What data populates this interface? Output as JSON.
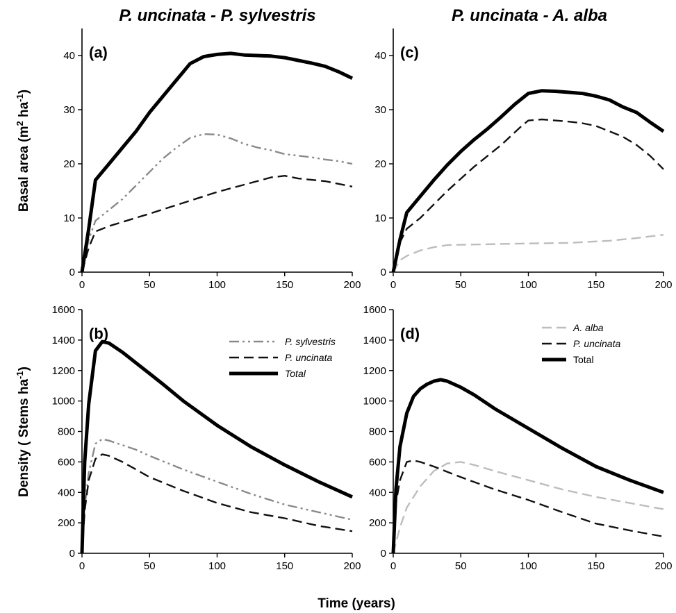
{
  "figure": {
    "col_titles": [
      "P. uncinata - P. sylvestris",
      "P. uncinata - A. alba"
    ],
    "ylabel_top": "Basal area (m² ha⁻¹)",
    "ylabel_bottom": "Density ( Stems ha⁻¹)",
    "xlabel": "Time (years)"
  },
  "chart_data": [
    {
      "panel": "(a)",
      "type": "line",
      "xlim": [
        0,
        200
      ],
      "ylim": [
        0,
        45
      ],
      "xticks": [
        0,
        50,
        100,
        150,
        200
      ],
      "yticks": [
        0,
        10,
        20,
        30,
        40
      ],
      "legend": false,
      "series": [
        {
          "name": "P. sylvestris",
          "style": "dashdotdot",
          "color": "#8a8a8a",
          "x": [
            0,
            5,
            10,
            20,
            30,
            40,
            50,
            60,
            70,
            80,
            90,
            100,
            110,
            120,
            130,
            140,
            150,
            160,
            170,
            180,
            190,
            200
          ],
          "y": [
            0,
            6,
            9.5,
            11.5,
            13.5,
            16,
            18.5,
            21,
            23,
            24.8,
            25.5,
            25.4,
            24.7,
            23.7,
            23,
            22.5,
            21.8,
            21.5,
            21.2,
            20.8,
            20.5,
            20
          ]
        },
        {
          "name": "P. uncinata",
          "style": "dashed",
          "color": "#111111",
          "x": [
            0,
            5,
            10,
            20,
            50,
            100,
            140,
            150,
            160,
            180,
            200
          ],
          "y": [
            0,
            4.5,
            7.5,
            8.5,
            10.8,
            14.8,
            17.5,
            17.8,
            17.3,
            16.8,
            15.8
          ]
        },
        {
          "name": "Total",
          "style": "solid",
          "color": "#000000",
          "x": [
            0,
            5,
            10,
            20,
            30,
            40,
            50,
            60,
            70,
            80,
            90,
            100,
            110,
            120,
            130,
            140,
            150,
            160,
            170,
            180,
            190,
            200
          ],
          "y": [
            0,
            8,
            17,
            20,
            23,
            26,
            29.5,
            32.5,
            35.5,
            38.5,
            39.8,
            40.2,
            40.4,
            40.1,
            40,
            39.9,
            39.6,
            39.1,
            38.6,
            38,
            37,
            35.8
          ]
        }
      ]
    },
    {
      "panel": "(c)",
      "type": "line",
      "xlim": [
        0,
        200
      ],
      "ylim": [
        0,
        45
      ],
      "xticks": [
        0,
        50,
        100,
        150,
        200
      ],
      "yticks": [
        0,
        10,
        20,
        30,
        40
      ],
      "legend": false,
      "series": [
        {
          "name": "A. alba",
          "style": "dashed",
          "color": "#bdbdbd",
          "x": [
            0,
            5,
            10,
            20,
            30,
            40,
            60,
            100,
            130,
            160,
            180,
            200
          ],
          "y": [
            0,
            2.2,
            3,
            4,
            4.6,
            5,
            5.1,
            5.3,
            5.4,
            5.8,
            6.3,
            6.9
          ]
        },
        {
          "name": "P. uncinata",
          "style": "dashed",
          "color": "#111111",
          "x": [
            0,
            5,
            10,
            20,
            40,
            60,
            80,
            95,
            100,
            110,
            120,
            130,
            140,
            150,
            160,
            170,
            180,
            190,
            200
          ],
          "y": [
            0,
            5.5,
            8,
            10,
            15,
            19.5,
            23.5,
            27,
            28,
            28.2,
            28,
            27.8,
            27.5,
            27,
            26,
            25,
            23.5,
            21.5,
            19
          ]
        },
        {
          "name": "Total",
          "style": "solid",
          "color": "#000000",
          "x": [
            0,
            5,
            10,
            20,
            30,
            40,
            50,
            60,
            70,
            80,
            90,
            100,
            110,
            120,
            130,
            140,
            150,
            160,
            170,
            180,
            190,
            200
          ],
          "y": [
            0,
            6,
            11,
            14,
            17,
            19.8,
            22.3,
            24.5,
            26.5,
            28.7,
            31,
            33,
            33.5,
            33.4,
            33.2,
            33,
            32.5,
            31.8,
            30.5,
            29.5,
            27.7,
            26
          ]
        }
      ]
    },
    {
      "panel": "(b)",
      "type": "line",
      "xlim": [
        0,
        200
      ],
      "ylim": [
        0,
        1600
      ],
      "xticks": [
        0,
        50,
        100,
        150,
        200
      ],
      "yticks": [
        0,
        200,
        400,
        600,
        800,
        1000,
        1200,
        1400,
        1600
      ],
      "legend": true,
      "legend_position": "top-right",
      "series": [
        {
          "name": "P. sylvestris",
          "style": "dashdotdot",
          "color": "#8a8a8a",
          "x": [
            0,
            2,
            5,
            10,
            15,
            20,
            30,
            40,
            50,
            75,
            100,
            125,
            150,
            175,
            200
          ],
          "y": [
            0,
            300,
            530,
            720,
            750,
            740,
            710,
            680,
            640,
            550,
            470,
            390,
            320,
            270,
            220
          ]
        },
        {
          "name": "P. uncinata",
          "style": "dashed",
          "color": "#111111",
          "x": [
            0,
            2,
            5,
            10,
            15,
            20,
            30,
            40,
            50,
            75,
            100,
            125,
            150,
            175,
            200
          ],
          "y": [
            0,
            280,
            480,
            620,
            650,
            640,
            600,
            550,
            500,
            410,
            330,
            270,
            230,
            180,
            145
          ]
        },
        {
          "name": "Total",
          "style": "solid",
          "color": "#000000",
          "x": [
            0,
            2,
            5,
            10,
            15,
            20,
            30,
            40,
            50,
            60,
            75,
            100,
            125,
            150,
            175,
            200
          ],
          "y": [
            0,
            600,
            980,
            1330,
            1390,
            1380,
            1320,
            1250,
            1180,
            1110,
            1000,
            840,
            700,
            580,
            470,
            370
          ]
        }
      ]
    },
    {
      "panel": "(d)",
      "type": "line",
      "xlim": [
        0,
        200
      ],
      "ylim": [
        0,
        1600
      ],
      "xticks": [
        0,
        50,
        100,
        150,
        200
      ],
      "yticks": [
        0,
        200,
        400,
        600,
        800,
        1000,
        1200,
        1400,
        1600
      ],
      "legend": true,
      "legend_position": "top-right",
      "series": [
        {
          "name": "A. alba",
          "style": "dashed",
          "color": "#bdbdbd",
          "x": [
            0,
            5,
            10,
            20,
            30,
            40,
            50,
            60,
            75,
            100,
            125,
            150,
            175,
            200
          ],
          "y": [
            0,
            170,
            300,
            440,
            540,
            590,
            600,
            580,
            540,
            480,
            420,
            370,
            330,
            290
          ]
        },
        {
          "name": "P. uncinata",
          "style": "dashed",
          "color": "#111111",
          "x": [
            0,
            2,
            5,
            10,
            15,
            20,
            30,
            50,
            75,
            100,
            125,
            150,
            175,
            200
          ],
          "y": [
            0,
            330,
            480,
            600,
            610,
            600,
            570,
            500,
            420,
            350,
            270,
            195,
            150,
            110
          ]
        },
        {
          "name": "Total",
          "style": "solid",
          "color": "#000000",
          "x": [
            0,
            2,
            5,
            10,
            15,
            20,
            25,
            30,
            35,
            40,
            50,
            60,
            75,
            100,
            125,
            150,
            175,
            200
          ],
          "y": [
            0,
            420,
            700,
            920,
            1030,
            1080,
            1110,
            1130,
            1140,
            1130,
            1090,
            1040,
            950,
            820,
            690,
            570,
            480,
            400
          ]
        }
      ]
    }
  ]
}
